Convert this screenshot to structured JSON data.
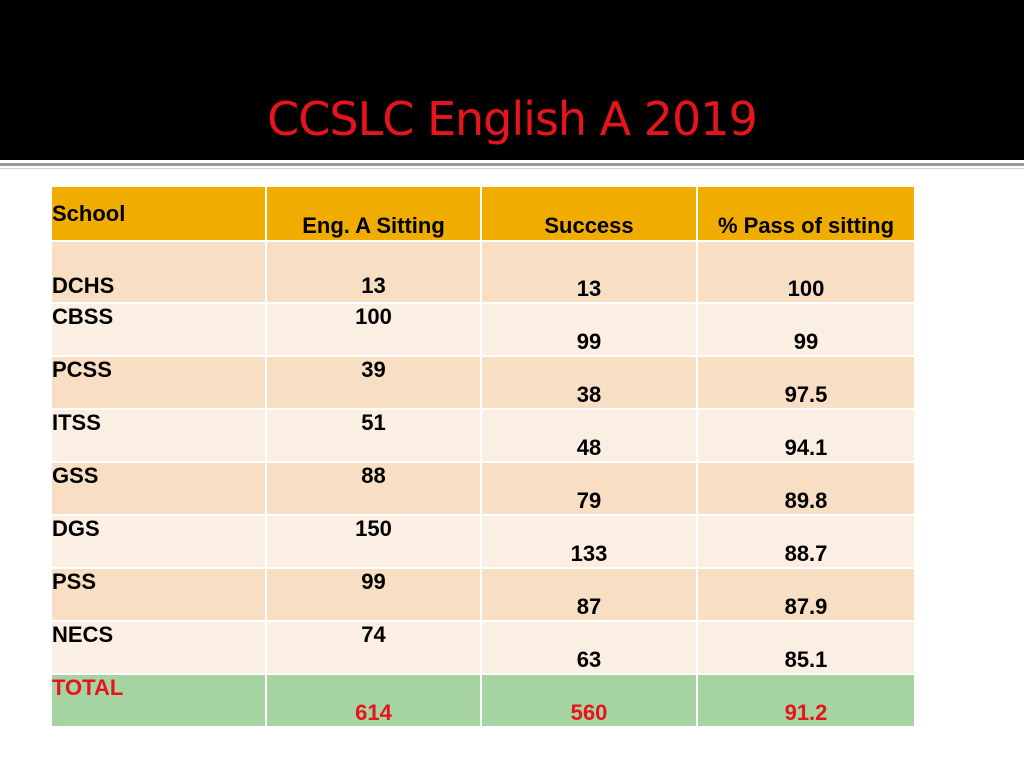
{
  "slide": {
    "title": "CCSLC English A 2019"
  },
  "table": {
    "headers": [
      "School",
      "Eng. A Sitting",
      "Success",
      "% Pass of sitting"
    ],
    "rows": [
      {
        "school": "DCHS",
        "sitting": "13",
        "success": "13",
        "pass_pct": "100"
      },
      {
        "school": "CBSS",
        "sitting": "100",
        "success": "99",
        "pass_pct": "99"
      },
      {
        "school": "PCSS",
        "sitting": "39",
        "success": "38",
        "pass_pct": "97.5"
      },
      {
        "school": "ITSS",
        "sitting": "51",
        "success": "48",
        "pass_pct": "94.1"
      },
      {
        "school": "GSS",
        "sitting": "88",
        "success": "79",
        "pass_pct": "89.8"
      },
      {
        "school": "DGS",
        "sitting": "150",
        "success": "133",
        "pass_pct": "88.7"
      },
      {
        "school": "PSS",
        "sitting": "99",
        "success": "87",
        "pass_pct": "87.9"
      },
      {
        "school": "NECS",
        "sitting": "74",
        "success": "63",
        "pass_pct": "85.1"
      }
    ],
    "total": {
      "school": "TOTAL",
      "sitting": "614",
      "success": "560",
      "pass_pct": "91.2"
    }
  },
  "colors": {
    "title_red": "#e8141c",
    "header_orange": "#f0ad00",
    "row_odd": "#f8dec3",
    "row_even": "#fbeee3",
    "total_green": "#a5d3a1"
  }
}
